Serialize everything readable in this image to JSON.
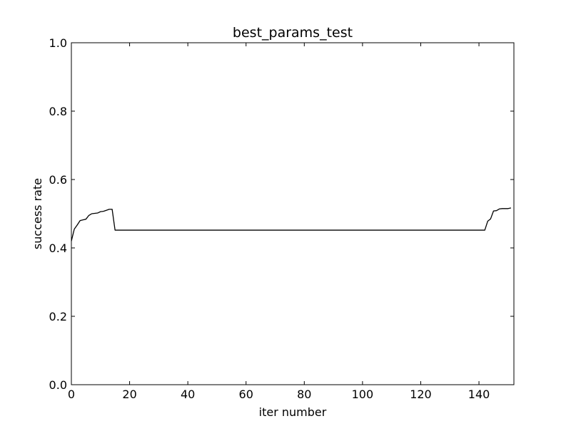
{
  "chart_data": {
    "type": "line",
    "title": "best_params_test",
    "xlabel": "iter number",
    "ylabel": "success rate",
    "xlim": [
      0,
      152
    ],
    "ylim": [
      0,
      1.0
    ],
    "xticks": [
      0,
      20,
      40,
      60,
      80,
      100,
      120,
      140
    ],
    "xtick_labels": [
      "0",
      "20",
      "40",
      "60",
      "80",
      "100",
      "120",
      "140"
    ],
    "yticks": [
      0,
      0.2,
      0.4,
      0.6,
      0.8,
      1.0
    ],
    "ytick_labels": [
      "0.0",
      "0.2",
      "0.4",
      "0.6",
      "0.8",
      "1.0"
    ],
    "grid": false,
    "legend": "none",
    "series": [
      {
        "color": "#000000",
        "x": [
          0,
          1,
          2,
          3,
          4,
          5,
          6,
          7,
          8,
          9,
          10,
          11,
          12,
          13,
          14,
          15,
          142,
          143,
          144,
          145,
          146,
          147,
          148,
          149,
          150,
          151
        ],
        "y": [
          0.42,
          0.455,
          0.467,
          0.48,
          0.482,
          0.484,
          0.495,
          0.5,
          0.501,
          0.502,
          0.506,
          0.507,
          0.51,
          0.513,
          0.513,
          0.452,
          0.452,
          0.478,
          0.485,
          0.508,
          0.509,
          0.514,
          0.515,
          0.515,
          0.515,
          0.517
        ]
      }
    ]
  }
}
